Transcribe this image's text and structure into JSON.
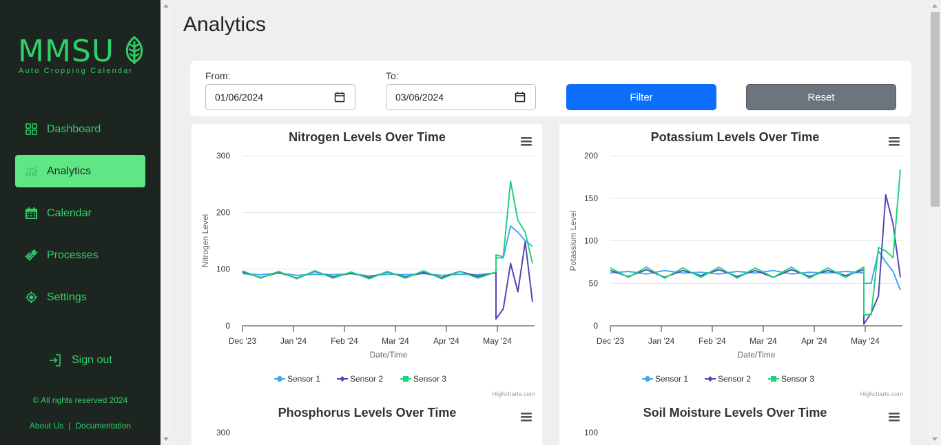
{
  "sidebar": {
    "logo_text": "MMSU",
    "logo_subtitle": "Auto Cropping Calendar",
    "items": [
      {
        "label": "Dashboard",
        "icon": "grid-icon",
        "active": false
      },
      {
        "label": "Analytics",
        "icon": "chart-icon",
        "active": true
      },
      {
        "label": "Calendar",
        "icon": "calendar-icon",
        "active": false
      },
      {
        "label": "Processes",
        "icon": "gears-icon",
        "active": false
      },
      {
        "label": "Settings",
        "icon": "settings-icon",
        "active": false
      }
    ],
    "signout_label": "Sign out",
    "rights": "© All rights reserved 2024",
    "about_label": "About Us",
    "separator": "|",
    "docs_label": "Documentation"
  },
  "main": {
    "title": "Analytics",
    "filter": {
      "from_label": "From:",
      "from_value": "01/06/2024",
      "to_label": "To:",
      "to_value": "03/06/2024",
      "filter_label": "Filter",
      "reset_label": "Reset"
    }
  },
  "colors": {
    "sidebar_bg": "#1d2520",
    "accent_green": "#2fd06a",
    "active_bg": "#5ee784",
    "sensor1": "#3fa9f5",
    "sensor2": "#5046b4",
    "sensor3": "#1ed27c",
    "filter_btn": "#0d6efd",
    "reset_btn": "#6c757d"
  },
  "chart_data": [
    {
      "type": "line",
      "title": "Nitrogen Levels Over Time",
      "xlabel": "Date/Time",
      "ylabel": "Nitrogen Level",
      "x_ticks": [
        "Dec '23",
        "Jan '24",
        "Feb '24",
        "Mar '24",
        "Apr '24",
        "May '24"
      ],
      "y_ticks": [
        0,
        100,
        200,
        300
      ],
      "ylim": [
        0,
        300
      ],
      "credits": "Highcharts.com",
      "series": [
        {
          "name": "Sensor 1",
          "values": [
            92,
            90,
            93,
            89,
            91,
            90,
            92,
            88,
            91,
            90,
            92,
            89,
            91,
            90,
            93,
            120,
            120,
            176,
            165,
            150,
            140
          ]
        },
        {
          "name": "Sensor 2",
          "values": [
            95,
            85,
            94,
            84,
            96,
            86,
            93,
            85,
            95,
            86,
            94,
            85,
            96,
            87,
            94,
            12,
            30,
            110,
            60,
            148,
            42
          ]
        },
        {
          "name": "Sensor 3",
          "values": [
            97,
            84,
            96,
            83,
            97,
            84,
            95,
            83,
            96,
            84,
            97,
            83,
            96,
            84,
            95,
            125,
            122,
            255,
            186,
            165,
            110
          ]
        }
      ]
    },
    {
      "type": "line",
      "title": "Potassium Levels Over Time",
      "xlabel": "Date/Time",
      "ylabel": "Potassium Level",
      "x_ticks": [
        "Dec '23",
        "Jan '24",
        "Feb '24",
        "Mar '24",
        "Apr '24",
        "May '24"
      ],
      "y_ticks": [
        0,
        50,
        100,
        150,
        200
      ],
      "ylim": [
        0,
        200
      ],
      "credits": "Highcharts.com",
      "series": [
        {
          "name": "Sensor 1",
          "values": [
            62,
            64,
            61,
            65,
            62,
            63,
            61,
            64,
            62,
            65,
            61,
            63,
            62,
            64,
            62,
            50,
            50,
            88,
            75,
            64,
            42
          ]
        },
        {
          "name": "Sensor 2",
          "values": [
            65,
            58,
            66,
            57,
            65,
            59,
            66,
            58,
            65,
            57,
            66,
            58,
            65,
            59,
            66,
            2,
            15,
            35,
            154,
            120,
            57
          ]
        },
        {
          "name": "Sensor 3",
          "values": [
            68,
            57,
            69,
            56,
            68,
            57,
            69,
            56,
            68,
            57,
            69,
            56,
            68,
            57,
            69,
            13,
            13,
            92,
            88,
            80,
            184
          ]
        }
      ]
    },
    {
      "type": "line",
      "title": "Phosphorus Levels Over Time",
      "y_ticks": [
        300
      ]
    },
    {
      "type": "line",
      "title": "Soil Moisture Levels Over Time",
      "y_ticks": [
        100
      ]
    }
  ]
}
